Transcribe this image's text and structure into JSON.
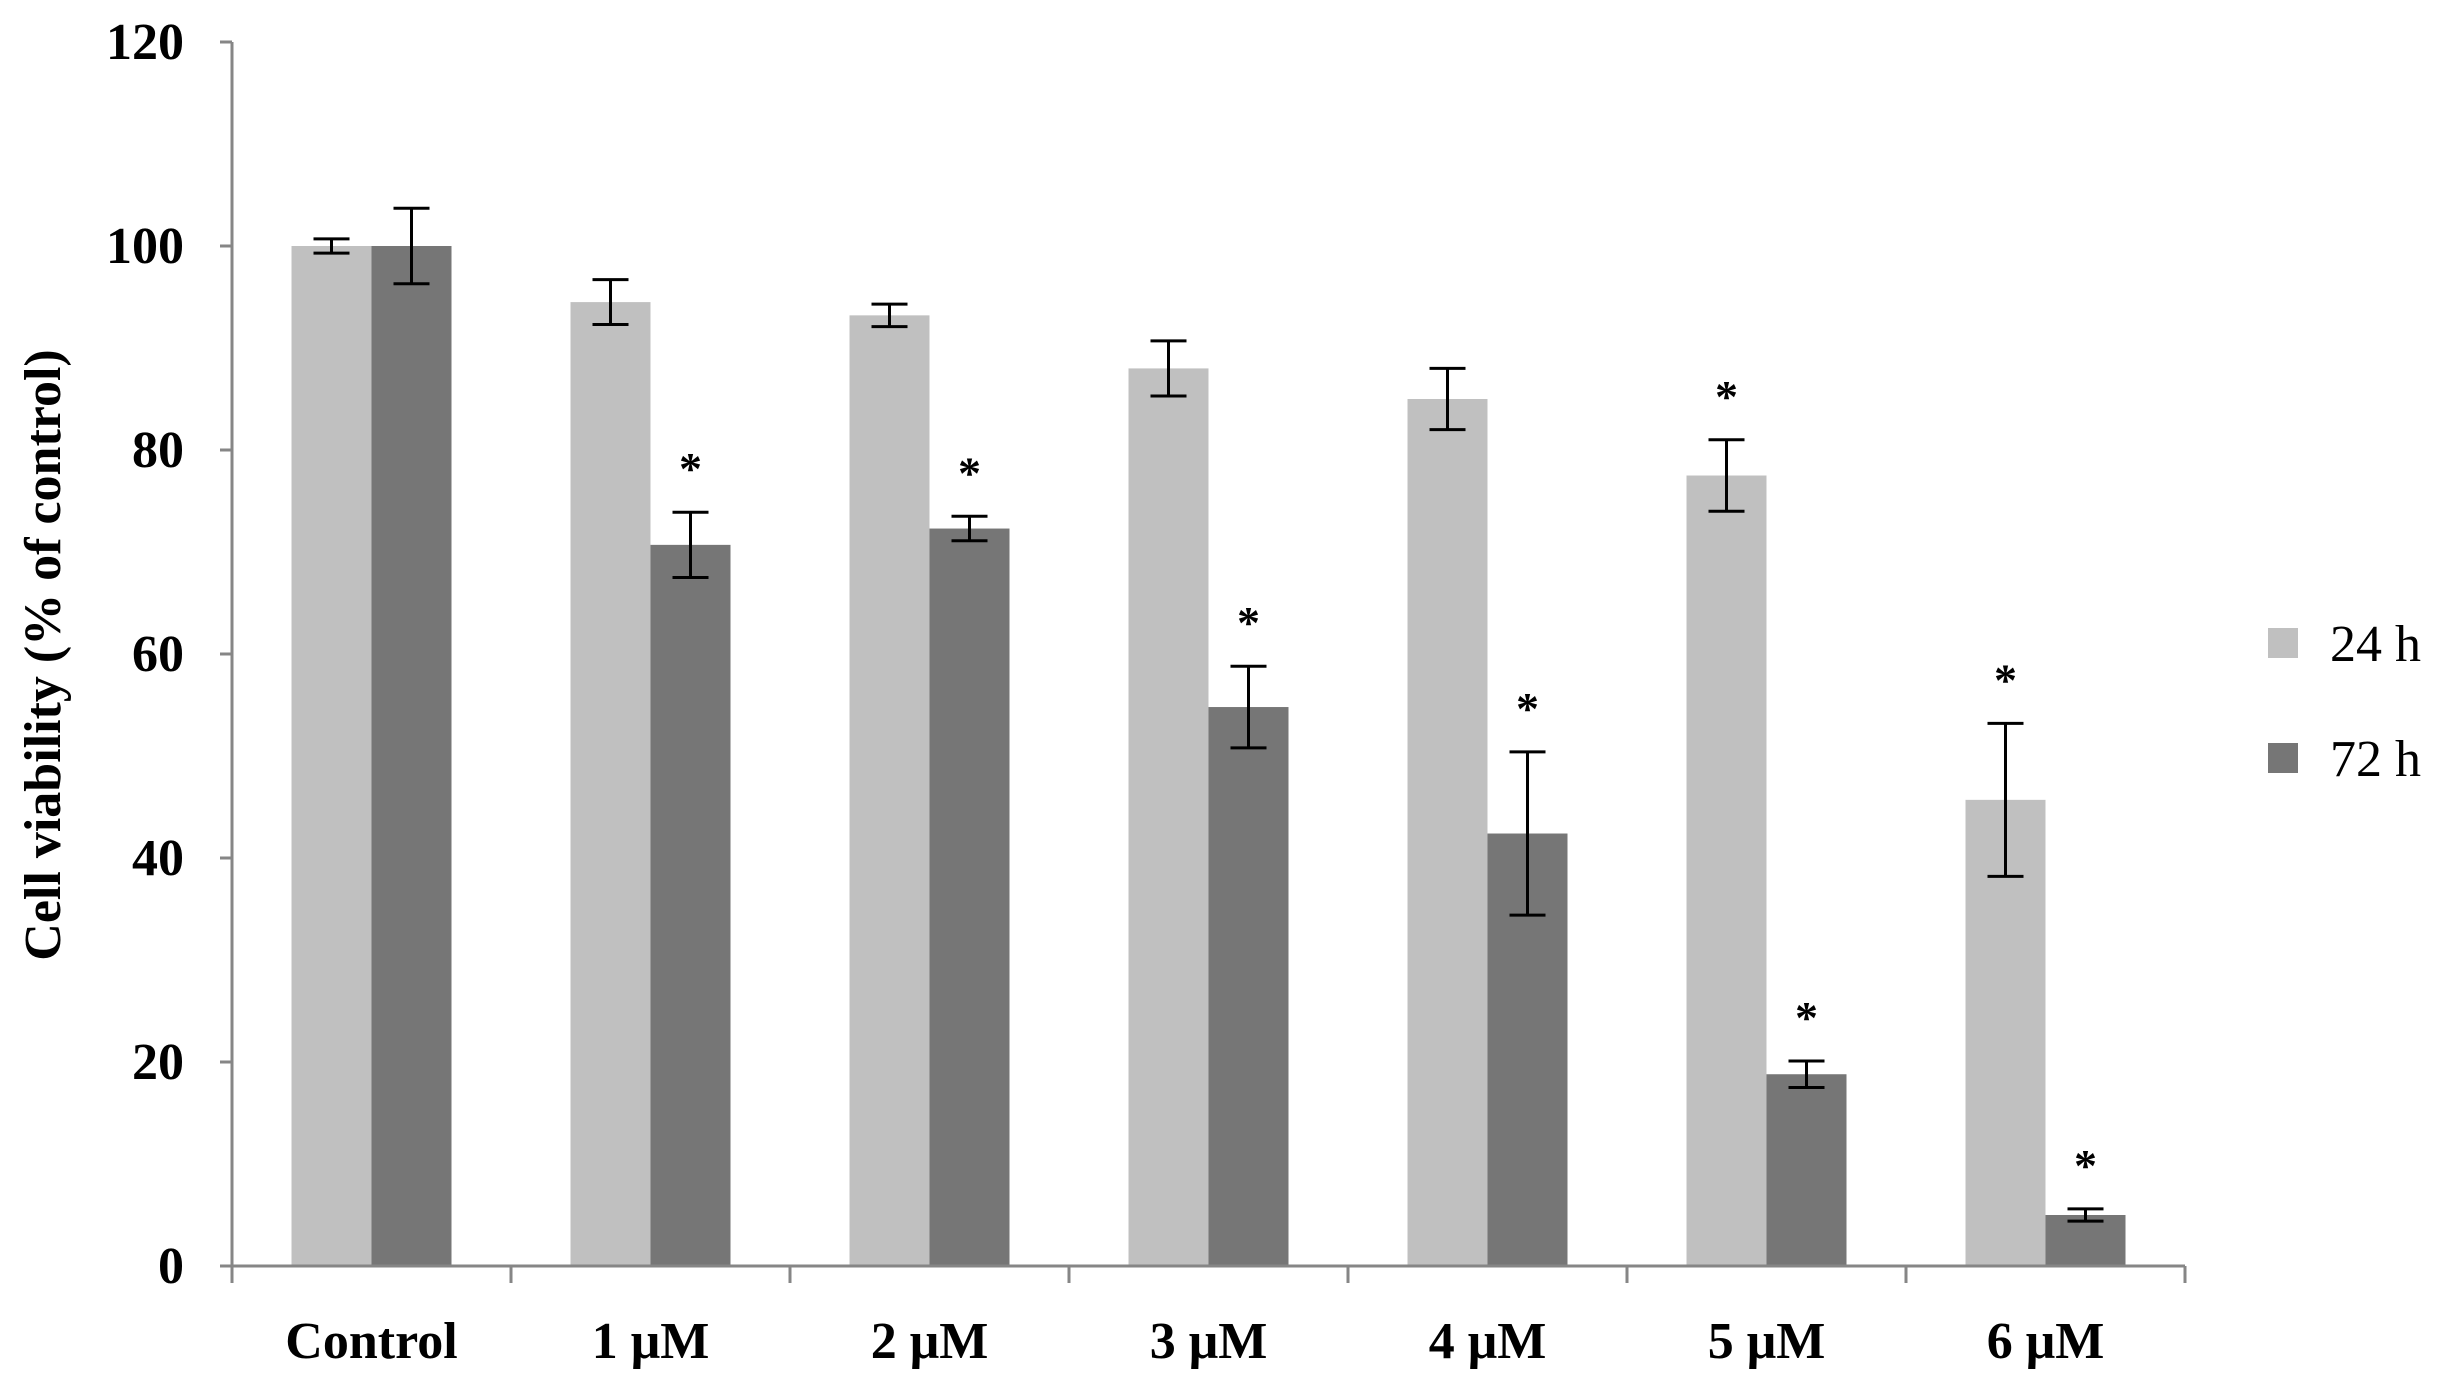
{
  "chart_data": {
    "type": "bar",
    "title": "",
    "xlabel": "",
    "ylabel": "Cell viability (% of control)",
    "ylim": [
      0,
      120
    ],
    "yticks": [
      0,
      20,
      40,
      60,
      80,
      100,
      120
    ],
    "ytick_labels": [
      "0",
      "20",
      "40",
      "60",
      "80",
      "100",
      "120"
    ],
    "categories": [
      "Control",
      "1 μM",
      "2 μM",
      "3 μM",
      "4 μM",
      "5 μM",
      "6 μM"
    ],
    "series": [
      {
        "name": "24 h",
        "color": "#c0c0c0",
        "values": [
          100,
          94.5,
          93.2,
          88,
          85,
          77.5,
          45.7
        ],
        "errors": [
          0.7,
          2.2,
          1.1,
          2.7,
          3,
          3.5,
          7.5
        ],
        "significance": [
          "",
          "",
          "",
          "",
          "",
          "*",
          "*"
        ]
      },
      {
        "name": "72 h",
        "color": "#767676",
        "values": [
          100,
          70.7,
          72.3,
          54.8,
          42.4,
          18.8,
          5
        ],
        "errors": [
          3.7,
          3.2,
          1.2,
          4,
          8,
          1.3,
          0.6
        ],
        "significance": [
          "",
          "*",
          "*",
          "*",
          "*",
          "*",
          "*"
        ]
      }
    ],
    "grid": false,
    "legend_position": "right"
  }
}
